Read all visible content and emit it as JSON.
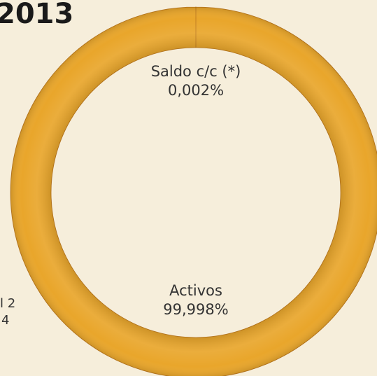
{
  "chart_data": {
    "type": "donut",
    "title": "2013",
    "annotations": [
      "l 2",
      "4"
    ],
    "categories": [
      "Saldo c/c (*)",
      "Activos"
    ],
    "values": [
      0.002,
      99.998
    ],
    "value_labels": [
      "0,002%",
      "99,998%"
    ],
    "colors": [
      "#b8741c",
      "#e9a62b"
    ]
  }
}
